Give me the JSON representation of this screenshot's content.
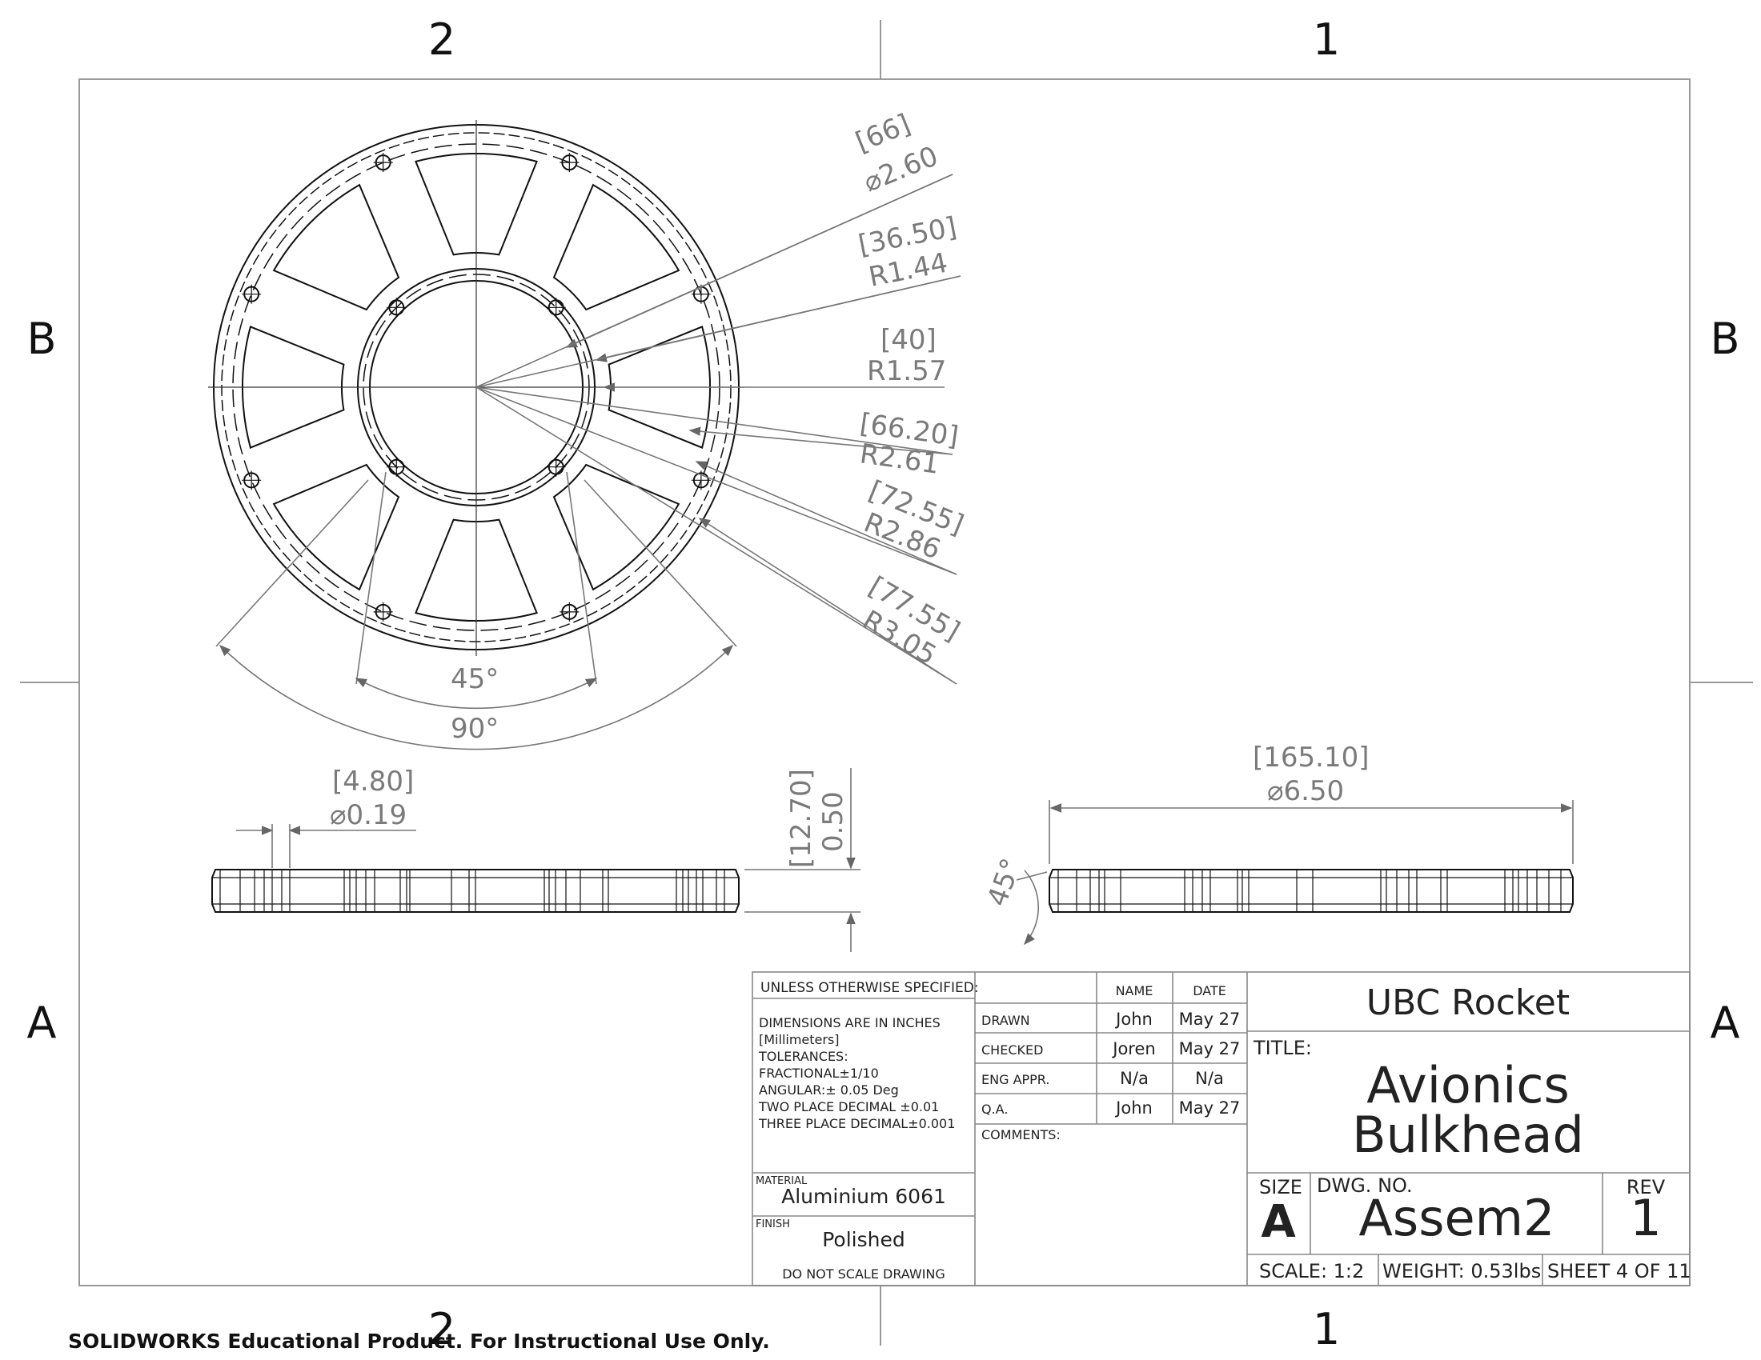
{
  "border": {
    "zones_top": [
      "2",
      "1"
    ],
    "zones_bottom": [
      "2",
      "1"
    ],
    "zones_left": [
      "B",
      "A"
    ],
    "zones_right": [
      "B",
      "A"
    ]
  },
  "top_view": {
    "dims": [
      {
        "mm": "[66]",
        "in": "⌀2.60"
      },
      {
        "mm": "[36.50]",
        "in": "R1.44"
      },
      {
        "mm": "[40]",
        "in": "R1.57"
      },
      {
        "mm": "[66.20]",
        "in": "R2.61"
      },
      {
        "mm": "[72.55]",
        "in": "R2.86"
      },
      {
        "mm": "[77.55]",
        "in": "R3.05"
      }
    ],
    "angle_small": "45°",
    "angle_large": "90°"
  },
  "side_view_left": {
    "hole_mm": "[4.80]",
    "hole_in": "⌀0.19",
    "thick_mm": "[12.70]",
    "thick_in": "0.50"
  },
  "side_view_right": {
    "dia_mm": "[165.10]",
    "dia_in": "⌀6.50",
    "chamfer": "45°"
  },
  "title_block": {
    "unless": "UNLESS OTHERWISE SPECIFIED:",
    "spec_lines": [
      "DIMENSIONS ARE IN INCHES",
      "[Millimeters]",
      "TOLERANCES:",
      "FRACTIONAL±1/10",
      "ANGULAR:± 0.05 Deg",
      "TWO PLACE DECIMAL  ±0.01",
      "THREE PLACE DECIMAL±0.001"
    ],
    "material_label": "MATERIAL",
    "material": "Aluminium 6061",
    "finish_label": "FINISH",
    "finish": "Polished",
    "no_scale": "DO NOT SCALE DRAWING",
    "col_name": "NAME",
    "col_date": "DATE",
    "rows": [
      {
        "label": "DRAWN",
        "name": "John",
        "date": "May 27"
      },
      {
        "label": "CHECKED",
        "name": "Joren",
        "date": "May 27"
      },
      {
        "label": "ENG APPR.",
        "name": "N/a",
        "date": "N/a"
      },
      {
        "label": "Q.A.",
        "name": "John",
        "date": "May 27"
      }
    ],
    "comments": "COMMENTS:",
    "company": "UBC Rocket",
    "title_label": "TITLE:",
    "title_line1": "Avionics",
    "title_line2": "Bulkhead",
    "size_label": "SIZE",
    "size": "A",
    "dwg_label": "DWG.  NO.",
    "dwg": "Assem2",
    "rev_label": "REV",
    "rev": "1",
    "scale": "SCALE: 1:2",
    "weight": "WEIGHT: 0.53lbs",
    "sheet": "SHEET 4 OF 11"
  },
  "footer": "SOLIDWORKS Educational Product. For Instructional Use Only."
}
